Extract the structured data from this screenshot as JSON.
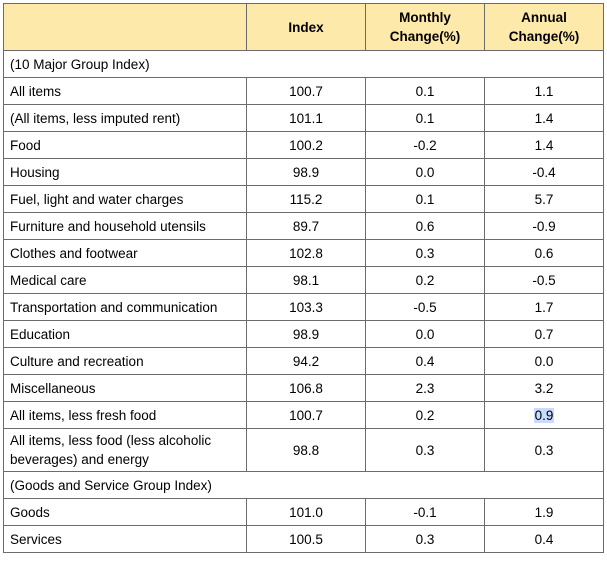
{
  "chart_data": {
    "type": "table",
    "columns": [
      "",
      "Index",
      "Monthly Change(%)",
      "Annual Change(%)"
    ],
    "rows": [
      {
        "kind": "section",
        "label": "(10 Major Group Index)"
      },
      {
        "kind": "data",
        "label": "All items",
        "index": "100.7",
        "monthly": "0.1",
        "annual": "1.1"
      },
      {
        "kind": "data",
        "label": "(All items, less imputed rent)",
        "index": "101.1",
        "monthly": "0.1",
        "annual": "1.4"
      },
      {
        "kind": "data",
        "label": "Food",
        "index": "100.2",
        "monthly": "-0.2",
        "annual": "1.4"
      },
      {
        "kind": "data",
        "label": "Housing",
        "index": "98.9",
        "monthly": "0.0",
        "annual": "-0.4"
      },
      {
        "kind": "data",
        "label": "Fuel, light and water charges",
        "index": "115.2",
        "monthly": "0.1",
        "annual": "5.7"
      },
      {
        "kind": "data",
        "label": "Furniture and household utensils",
        "index": "89.7",
        "monthly": "0.6",
        "annual": "-0.9"
      },
      {
        "kind": "data",
        "label": "Clothes and footwear",
        "index": "102.8",
        "monthly": "0.3",
        "annual": "0.6"
      },
      {
        "kind": "data",
        "label": "Medical care",
        "index": "98.1",
        "monthly": "0.2",
        "annual": "-0.5"
      },
      {
        "kind": "data",
        "label": "Transportation and communication",
        "index": "103.3",
        "monthly": "-0.5",
        "annual": "1.7"
      },
      {
        "kind": "data",
        "label": "Education",
        "index": "98.9",
        "monthly": "0.0",
        "annual": "0.7"
      },
      {
        "kind": "data",
        "label": "Culture and recreation",
        "index": "94.2",
        "monthly": "0.4",
        "annual": "0.0"
      },
      {
        "kind": "data",
        "label": "Miscellaneous",
        "index": "106.8",
        "monthly": "2.3",
        "annual": "3.2"
      },
      {
        "kind": "data",
        "label": "All items, less fresh food",
        "index": "100.7",
        "monthly": "0.2",
        "annual": "0.9",
        "annual_selected": true
      },
      {
        "kind": "data",
        "label": "All items, less food (less alcoholic beverages) and energy",
        "index": "98.8",
        "monthly": "0.3",
        "annual": "0.3",
        "tall": true
      },
      {
        "kind": "section",
        "label": "(Goods and Service Group Index)"
      },
      {
        "kind": "data",
        "label": "Goods",
        "index": "101.0",
        "monthly": "-0.1",
        "annual": "1.9"
      },
      {
        "kind": "data",
        "label": "Services",
        "index": "100.5",
        "monthly": "0.3",
        "annual": "0.4"
      }
    ]
  },
  "colors": {
    "header_bg": "#fde9a9",
    "border": "#6b6b6b",
    "selection_highlight": "#c7dcff"
  }
}
